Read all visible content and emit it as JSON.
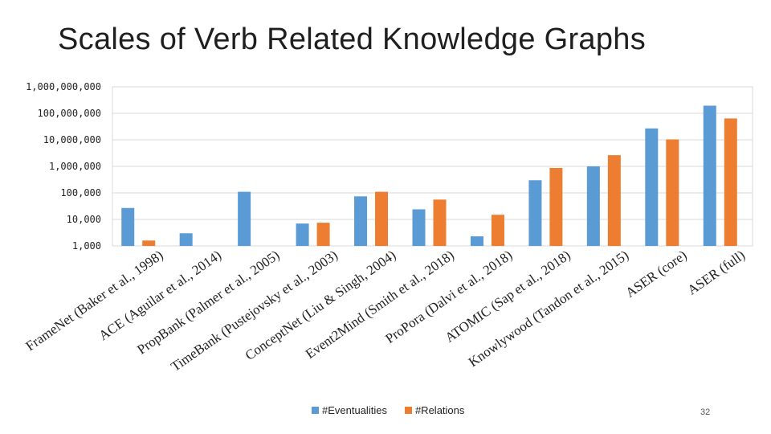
{
  "slide": {
    "title": "Scales of Verb Related Knowledge Graphs",
    "page_number": "32"
  },
  "chart_data": {
    "type": "bar",
    "title": "",
    "xlabel": "",
    "ylabel": "",
    "y_scale": "log",
    "ylim": [
      1000,
      1000000000
    ],
    "y_ticks": [
      "1,000",
      "10,000",
      "100,000",
      "1,000,000",
      "10,000,000",
      "100,000,000",
      "1,000,000,000"
    ],
    "grid": true,
    "legend_position": "bottom",
    "categories": [
      "FrameNet (Baker et al., 1998)",
      "ACE (Aguilar et al., 2014)",
      "PropBank (Palmer et al., 2005)",
      "TimeBank (Pustejovsky et al., 2003)",
      "ConceptNet (Liu & Singh, 2004)",
      "Event2Mind (Smith et al., 2018)",
      "ProPora (Dalvi et al., 2018)",
      "ATOMIC (Sap et al., 2018)",
      "Knowlywood (Tandon et al., 2015)",
      "ASER (core)",
      "ASER (full)"
    ],
    "series": [
      {
        "name": "#Eventualities",
        "color": "#5b9bd5",
        "values": [
          27000,
          3000,
          110000,
          7000,
          74000,
          24000,
          2300,
          300000,
          1000000,
          27000000,
          194000000
        ]
      },
      {
        "name": "#Relations",
        "color": "#ed7d31",
        "values": [
          1600,
          null,
          null,
          7500,
          110000,
          56000,
          15000,
          870000,
          2640000,
          10400000,
          64000000
        ]
      }
    ]
  }
}
